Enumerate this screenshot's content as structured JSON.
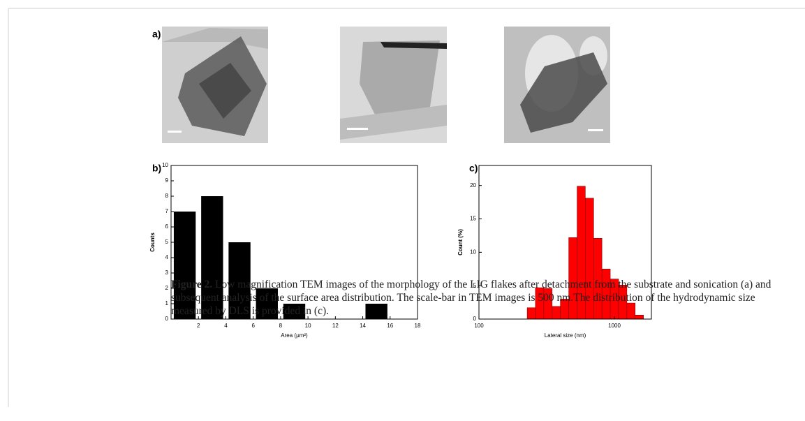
{
  "images": {
    "label": "a)"
  },
  "chart_data": [
    {
      "type": "histogram",
      "label": "b)",
      "bins": [
        0,
        2,
        4,
        6,
        8,
        10,
        12,
        14,
        16
      ],
      "counts": [
        7,
        8,
        5,
        2,
        1,
        0,
        0,
        1
      ],
      "color": "#000000",
      "xlim": [
        0,
        18
      ],
      "xticks": [
        2,
        4,
        6,
        8,
        10,
        12,
        14,
        16,
        18
      ],
      "ylim": [
        0,
        10
      ],
      "yticks": [
        0,
        1,
        2,
        3,
        4,
        5,
        6,
        7,
        8,
        9,
        10
      ],
      "x_label": "Area (μm²)",
      "y_label": "Counts",
      "log_x": false
    },
    {
      "type": "histogram",
      "label": "c)",
      "bins": [
        227,
        261,
        301,
        347,
        399,
        460,
        530,
        610,
        703,
        809,
        932,
        1074,
        1236,
        1423,
        1640
      ],
      "counts": [
        1.7,
        4.7,
        4.6,
        1.9,
        3.0,
        12.2,
        19.9,
        18.1,
        12.1,
        7.5,
        6.0,
        5.1,
        2.4,
        0.6
      ],
      "color": "#ff0000",
      "xlim": [
        100,
        1875
      ],
      "xticks": [
        100,
        1000
      ],
      "ylim": [
        0,
        23
      ],
      "yticks": [
        0,
        5,
        10,
        15,
        20
      ],
      "x_label": "Lateral size (nm)",
      "y_label": "Count (%)",
      "log_x": true
    }
  ],
  "caption": {
    "label": "Figure 2.",
    "text": "Low magnification TEM images of the morphology of the LIG flakes after detachment from the substrate and sonication (a) and subsequent analysis of the surface area distribution. The scale-bar in TEM images is 500 nm.The distribution of the hydrodynamic size measured by DLS is provided in (c)."
  }
}
